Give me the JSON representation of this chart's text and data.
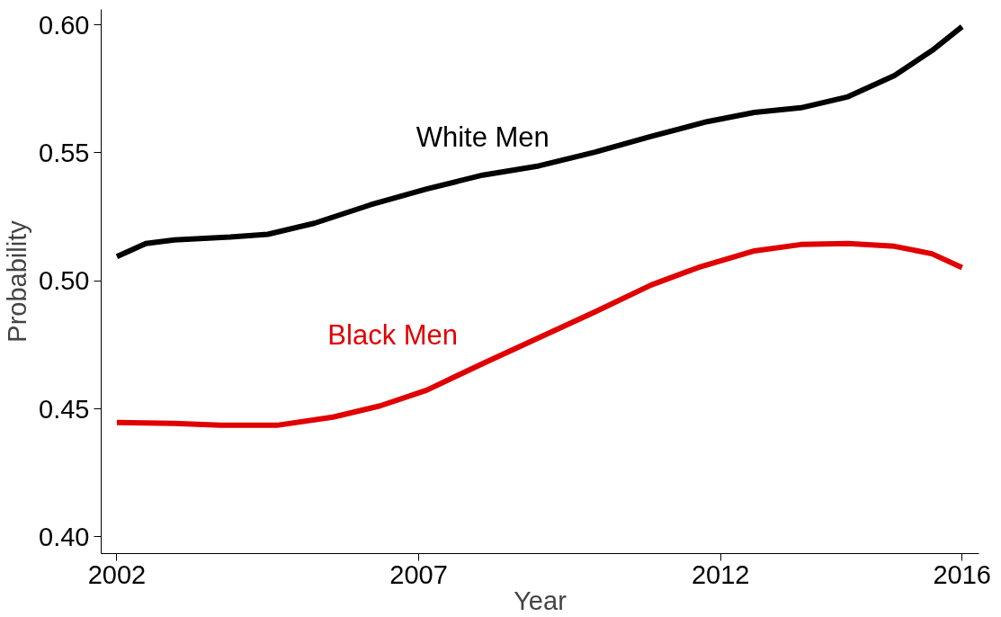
{
  "chart_data": {
    "type": "line",
    "xlabel": "Year",
    "ylabel": "Probability",
    "xlim": [
      2001.74,
      2016.28
    ],
    "ylim": [
      0.3935,
      0.606
    ],
    "xticks": [
      2002,
      2007,
      2012,
      2016
    ],
    "yticks": [
      {
        "value": 0.4,
        "label": "0.40"
      },
      {
        "value": 0.45,
        "label": "0.45"
      },
      {
        "value": 0.5,
        "label": "0.50"
      },
      {
        "value": 0.55,
        "label": "0.55"
      },
      {
        "value": 0.6,
        "label": "0.60"
      }
    ],
    "grid": false,
    "legend": false,
    "marker": "none",
    "line_style": "solid",
    "series": [
      {
        "name": "White Men",
        "color": "#000000",
        "x": [
          2002,
          2002.48,
          2002.95,
          2003.88,
          2004.5,
          2005.27,
          2006.2,
          2007.13,
          2008.06,
          2008.99,
          2009.92,
          2010.85,
          2011.78,
          2012.56,
          2013.33,
          2014.11,
          2014.88,
          2015.5,
          2016
        ],
        "values": [
          0.5095,
          0.5146,
          0.516,
          0.5171,
          0.5182,
          0.5225,
          0.5297,
          0.5359,
          0.5413,
          0.5449,
          0.5503,
          0.5564,
          0.5622,
          0.5658,
          0.5676,
          0.5719,
          0.5802,
          0.5899,
          0.5993
        ]
      },
      {
        "name": "Black Men",
        "color": "#e00000",
        "x": [
          2002,
          2002.95,
          2003.72,
          2004.65,
          2005.58,
          2006.36,
          2007.13,
          2008.06,
          2008.99,
          2009.92,
          2010.85,
          2011.63,
          2012.56,
          2013.33,
          2014.11,
          2014.88,
          2015.5,
          2016
        ],
        "values": [
          0.4447,
          0.4443,
          0.4436,
          0.4436,
          0.4468,
          0.4512,
          0.4573,
          0.4677,
          0.4778,
          0.4879,
          0.4984,
          0.5052,
          0.5117,
          0.5142,
          0.5146,
          0.5135,
          0.5106,
          0.5052
        ]
      }
    ]
  }
}
